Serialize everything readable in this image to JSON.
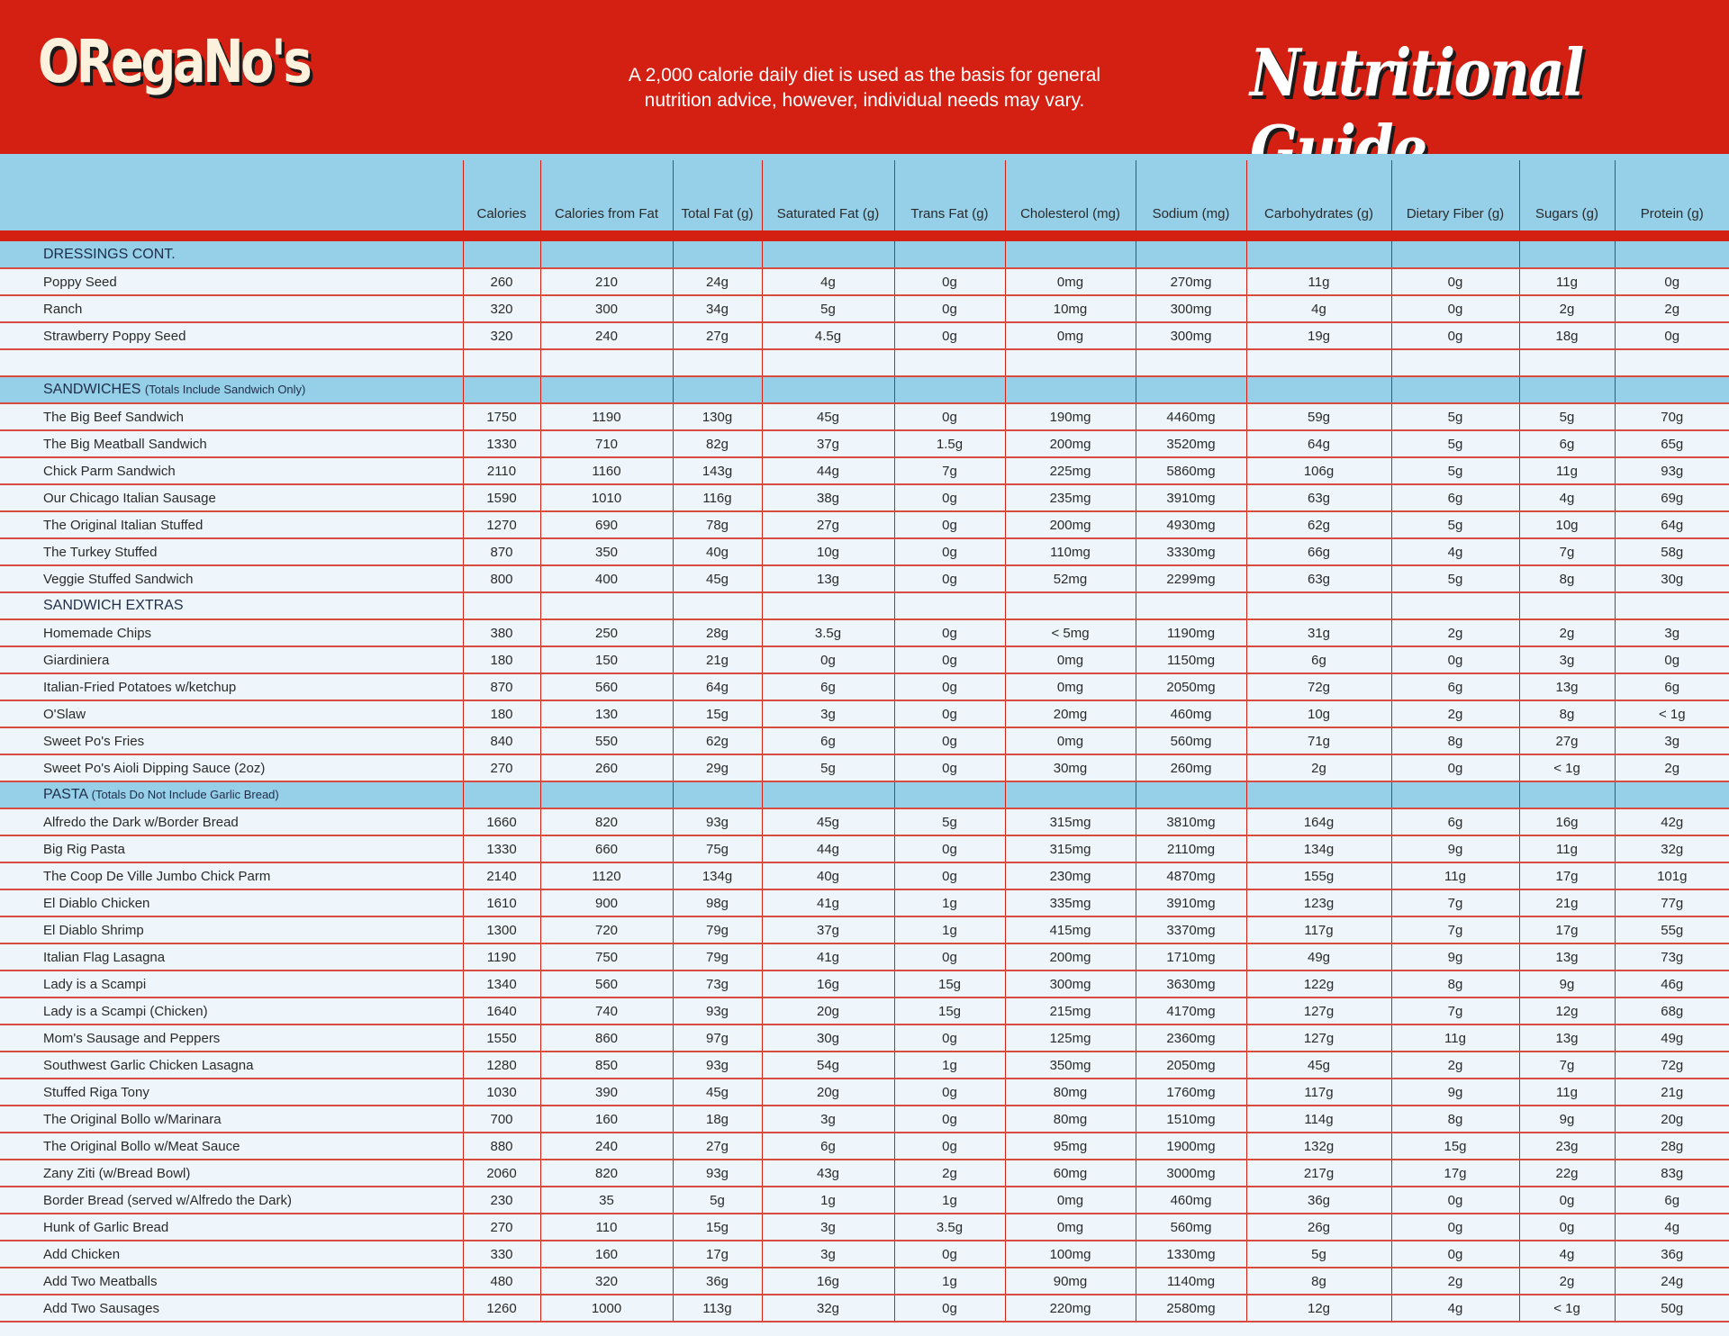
{
  "header": {
    "logo": "OReGaNo's",
    "tagline_line1": "A 2,000 calorie daily diet is used as the basis for general",
    "tagline_line2": "nutrition advice, however, individual needs may vary.",
    "title": "Nutritional Guide"
  },
  "colors": {
    "brand_red": "#d42012",
    "header_blue": "#96cfe8",
    "row_bg": "#eef6fb"
  },
  "columns": [
    "",
    "Calories",
    "Calories from Fat",
    "Total Fat (g)",
    "Saturated Fat (g)",
    "Trans Fat (g)",
    "Cholesterol (mg)",
    "Sodium (mg)",
    "Carbohydrates (g)",
    "Dietary Fiber (g)",
    "Sugars (g)",
    "Protein (g)"
  ],
  "sections": [
    {
      "title": "DRESSINGS CONT.",
      "note": "",
      "style": "blue",
      "rows": [
        [
          "Poppy Seed",
          "260",
          "210",
          "24g",
          "4g",
          "0g",
          "0mg",
          "270mg",
          "11g",
          "0g",
          "11g",
          "0g"
        ],
        [
          "Ranch",
          "320",
          "300",
          "34g",
          "5g",
          "0g",
          "10mg",
          "300mg",
          "4g",
          "0g",
          "2g",
          "2g"
        ],
        [
          "Strawberry Poppy Seed",
          "320",
          "240",
          "27g",
          "4.5g",
          "0g",
          "0mg",
          "300mg",
          "19g",
          "0g",
          "18g",
          "0g"
        ],
        [
          "",
          "",
          "",
          "",
          "",
          "",
          "",
          "",
          "",
          "",
          "",
          ""
        ]
      ]
    },
    {
      "title": "SANDWICHES",
      "note": "(Totals Include Sandwich Only)",
      "style": "blue",
      "rows": [
        [
          "The Big Beef Sandwich",
          "1750",
          "1190",
          "130g",
          "45g",
          "0g",
          "190mg",
          "4460mg",
          "59g",
          "5g",
          "5g",
          "70g"
        ],
        [
          "The Big Meatball Sandwich",
          "1330",
          "710",
          "82g",
          "37g",
          "1.5g",
          "200mg",
          "3520mg",
          "64g",
          "5g",
          "6g",
          "65g"
        ],
        [
          "Chick Parm Sandwich",
          "2110",
          "1160",
          "143g",
          "44g",
          "7g",
          "225mg",
          "5860mg",
          "106g",
          "5g",
          "11g",
          "93g"
        ],
        [
          "Our Chicago Italian Sausage",
          "1590",
          "1010",
          "116g",
          "38g",
          "0g",
          "235mg",
          "3910mg",
          "63g",
          "6g",
          "4g",
          "69g"
        ],
        [
          "The Original Italian Stuffed",
          "1270",
          "690",
          "78g",
          "27g",
          "0g",
          "200mg",
          "4930mg",
          "62g",
          "5g",
          "10g",
          "64g"
        ],
        [
          "The Turkey Stuffed",
          "870",
          "350",
          "40g",
          "10g",
          "0g",
          "110mg",
          "3330mg",
          "66g",
          "4g",
          "7g",
          "58g"
        ],
        [
          "Veggie Stuffed Sandwich",
          "800",
          "400",
          "45g",
          "13g",
          "0g",
          "52mg",
          "2299mg",
          "63g",
          "5g",
          "8g",
          "30g"
        ]
      ]
    },
    {
      "title": "SANDWICH EXTRAS",
      "note": "",
      "style": "plain",
      "rows": [
        [
          "Homemade Chips",
          "380",
          "250",
          "28g",
          "3.5g",
          "0g",
          "< 5mg",
          "1190mg",
          "31g",
          "2g",
          "2g",
          "3g"
        ],
        [
          "Giardiniera",
          "180",
          "150",
          "21g",
          "0g",
          "0g",
          "0mg",
          "1150mg",
          "6g",
          "0g",
          "3g",
          "0g"
        ],
        [
          "Italian-Fried Potatoes w/ketchup",
          "870",
          "560",
          "64g",
          "6g",
          "0g",
          "0mg",
          "2050mg",
          "72g",
          "6g",
          "13g",
          "6g"
        ],
        [
          "O'Slaw",
          "180",
          "130",
          "15g",
          "3g",
          "0g",
          "20mg",
          "460mg",
          "10g",
          "2g",
          "8g",
          "< 1g"
        ],
        [
          "Sweet Po's Fries",
          "840",
          "550",
          "62g",
          "6g",
          "0g",
          "0mg",
          "560mg",
          "71g",
          "8g",
          "27g",
          "3g"
        ],
        [
          "Sweet Po's Aioli Dipping Sauce (2oz)",
          "270",
          "260",
          "29g",
          "5g",
          "0g",
          "30mg",
          "260mg",
          "2g",
          "0g",
          "< 1g",
          "2g"
        ]
      ]
    },
    {
      "title": "PASTA",
      "note": "(Totals Do Not Include Garlic Bread)",
      "style": "blue",
      "rows": [
        [
          "Alfredo the Dark w/Border Bread",
          "1660",
          "820",
          "93g",
          "45g",
          "5g",
          "315mg",
          "3810mg",
          "164g",
          "6g",
          "16g",
          "42g"
        ],
        [
          "Big Rig Pasta",
          "1330",
          "660",
          "75g",
          "44g",
          "0g",
          "315mg",
          "2110mg",
          "134g",
          "9g",
          "11g",
          "32g"
        ],
        [
          "The Coop De Ville Jumbo Chick Parm",
          "2140",
          "1120",
          "134g",
          "40g",
          "0g",
          "230mg",
          "4870mg",
          "155g",
          "11g",
          "17g",
          "101g"
        ],
        [
          "El Diablo Chicken",
          "1610",
          "900",
          "98g",
          "41g",
          "1g",
          "335mg",
          "3910mg",
          "123g",
          "7g",
          "21g",
          "77g"
        ],
        [
          "El Diablo Shrimp",
          "1300",
          "720",
          "79g",
          "37g",
          "1g",
          "415mg",
          "3370mg",
          "117g",
          "7g",
          "17g",
          "55g"
        ],
        [
          "Italian Flag Lasagna",
          "1190",
          "750",
          "79g",
          "41g",
          "0g",
          "200mg",
          "1710mg",
          "49g",
          "9g",
          "13g",
          "73g"
        ],
        [
          "Lady is a Scampi",
          "1340",
          "560",
          "73g",
          "16g",
          "15g",
          "300mg",
          "3630mg",
          "122g",
          "8g",
          "9g",
          "46g"
        ],
        [
          "Lady is a Scampi (Chicken)",
          "1640",
          "740",
          "93g",
          "20g",
          "15g",
          "215mg",
          "4170mg",
          "127g",
          "7g",
          "12g",
          "68g"
        ],
        [
          "Mom's Sausage and Peppers",
          "1550",
          "860",
          "97g",
          "30g",
          "0g",
          "125mg",
          "2360mg",
          "127g",
          "11g",
          "13g",
          "49g"
        ],
        [
          "Southwest Garlic Chicken Lasagna",
          "1280",
          "850",
          "93g",
          "54g",
          "1g",
          "350mg",
          "2050mg",
          "45g",
          "2g",
          "7g",
          "72g"
        ],
        [
          "Stuffed Riga Tony",
          "1030",
          "390",
          "45g",
          "20g",
          "0g",
          "80mg",
          "1760mg",
          "117g",
          "9g",
          "11g",
          "21g"
        ],
        [
          "The Original Bollo w/Marinara",
          "700",
          "160",
          "18g",
          "3g",
          "0g",
          "80mg",
          "1510mg",
          "114g",
          "8g",
          "9g",
          "20g"
        ],
        [
          "The Original Bollo w/Meat Sauce",
          "880",
          "240",
          "27g",
          "6g",
          "0g",
          "95mg",
          "1900mg",
          "132g",
          "15g",
          "23g",
          "28g"
        ],
        [
          "Zany Ziti (w/Bread Bowl)",
          "2060",
          "820",
          "93g",
          "43g",
          "2g",
          "60mg",
          "3000mg",
          "217g",
          "17g",
          "22g",
          "83g"
        ],
        [
          "Border Bread (served w/Alfredo the Dark)",
          "230",
          "35",
          "5g",
          "1g",
          "1g",
          "0mg",
          "460mg",
          "36g",
          "0g",
          "0g",
          "6g"
        ],
        [
          "Hunk of Garlic Bread",
          "270",
          "110",
          "15g",
          "3g",
          "3.5g",
          "0mg",
          "560mg",
          "26g",
          "0g",
          "0g",
          "4g"
        ],
        [
          "Add Chicken",
          "330",
          "160",
          "17g",
          "3g",
          "0g",
          "100mg",
          "1330mg",
          "5g",
          "0g",
          "4g",
          "36g"
        ],
        [
          "Add Two Meatballs",
          "480",
          "320",
          "36g",
          "16g",
          "1g",
          "90mg",
          "1140mg",
          "8g",
          "2g",
          "2g",
          "24g"
        ],
        [
          "Add Two Sausages",
          "1260",
          "1000",
          "113g",
          "32g",
          "0g",
          "220mg",
          "2580mg",
          "12g",
          "4g",
          "< 1g",
          "50g"
        ]
      ]
    }
  ]
}
